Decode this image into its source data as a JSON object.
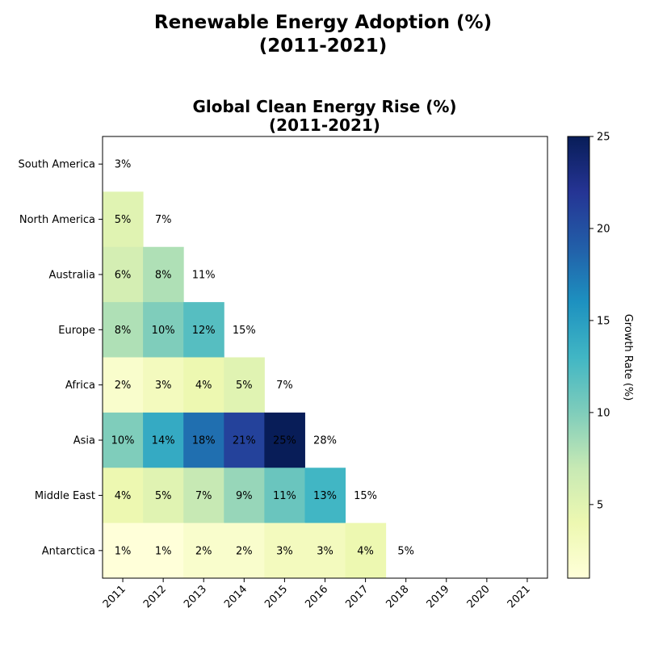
{
  "suptitle": {
    "line1": "Renewable Energy Adoption (%)",
    "line2": "(2011-2021)"
  },
  "chart_data": {
    "type": "heatmap",
    "title_line1": "Global Clean Energy Rise (%)",
    "title_line2": "(2011-2021)",
    "xlabel": "",
    "ylabel": "",
    "x": [
      "2011",
      "2012",
      "2013",
      "2014",
      "2015",
      "2016",
      "2017",
      "2018",
      "2019",
      "2020",
      "2021"
    ],
    "y": [
      "South America",
      "North America",
      "Australia",
      "Europe",
      "Africa",
      "Asia",
      "Middle East",
      "Antarctica"
    ],
    "colored_values": [
      [],
      [
        5
      ],
      [
        6,
        8
      ],
      [
        8,
        10,
        12
      ],
      [
        2,
        3,
        4,
        5
      ],
      [
        10,
        14,
        18,
        21,
        25
      ],
      [
        4,
        5,
        7,
        9,
        11,
        13
      ],
      [
        1,
        1,
        2,
        2,
        3,
        3,
        4
      ]
    ],
    "labels": [
      [
        "3%"
      ],
      [
        "5%",
        "7%"
      ],
      [
        "6%",
        "8%",
        "11%"
      ],
      [
        "8%",
        "10%",
        "12%",
        "15%"
      ],
      [
        "2%",
        "3%",
        "4%",
        "5%",
        "7%"
      ],
      [
        "10%",
        "14%",
        "18%",
        "21%",
        "25%",
        "28%"
      ],
      [
        "4%",
        "5%",
        "7%",
        "9%",
        "11%",
        "13%",
        "15%"
      ],
      [
        "1%",
        "1%",
        "2%",
        "2%",
        "3%",
        "3%",
        "4%",
        "5%"
      ]
    ],
    "colorbar": {
      "label": "Growth Rate (%)",
      "range": [
        1,
        25
      ],
      "ticks": [
        5,
        10,
        15,
        20,
        25
      ],
      "colormap": [
        "#ffffd9",
        "#edf8b1",
        "#c7e9b4",
        "#7fcdbb",
        "#41b6c4",
        "#1d91c0",
        "#225ea8",
        "#253494",
        "#081d58"
      ]
    },
    "grid": false
  }
}
